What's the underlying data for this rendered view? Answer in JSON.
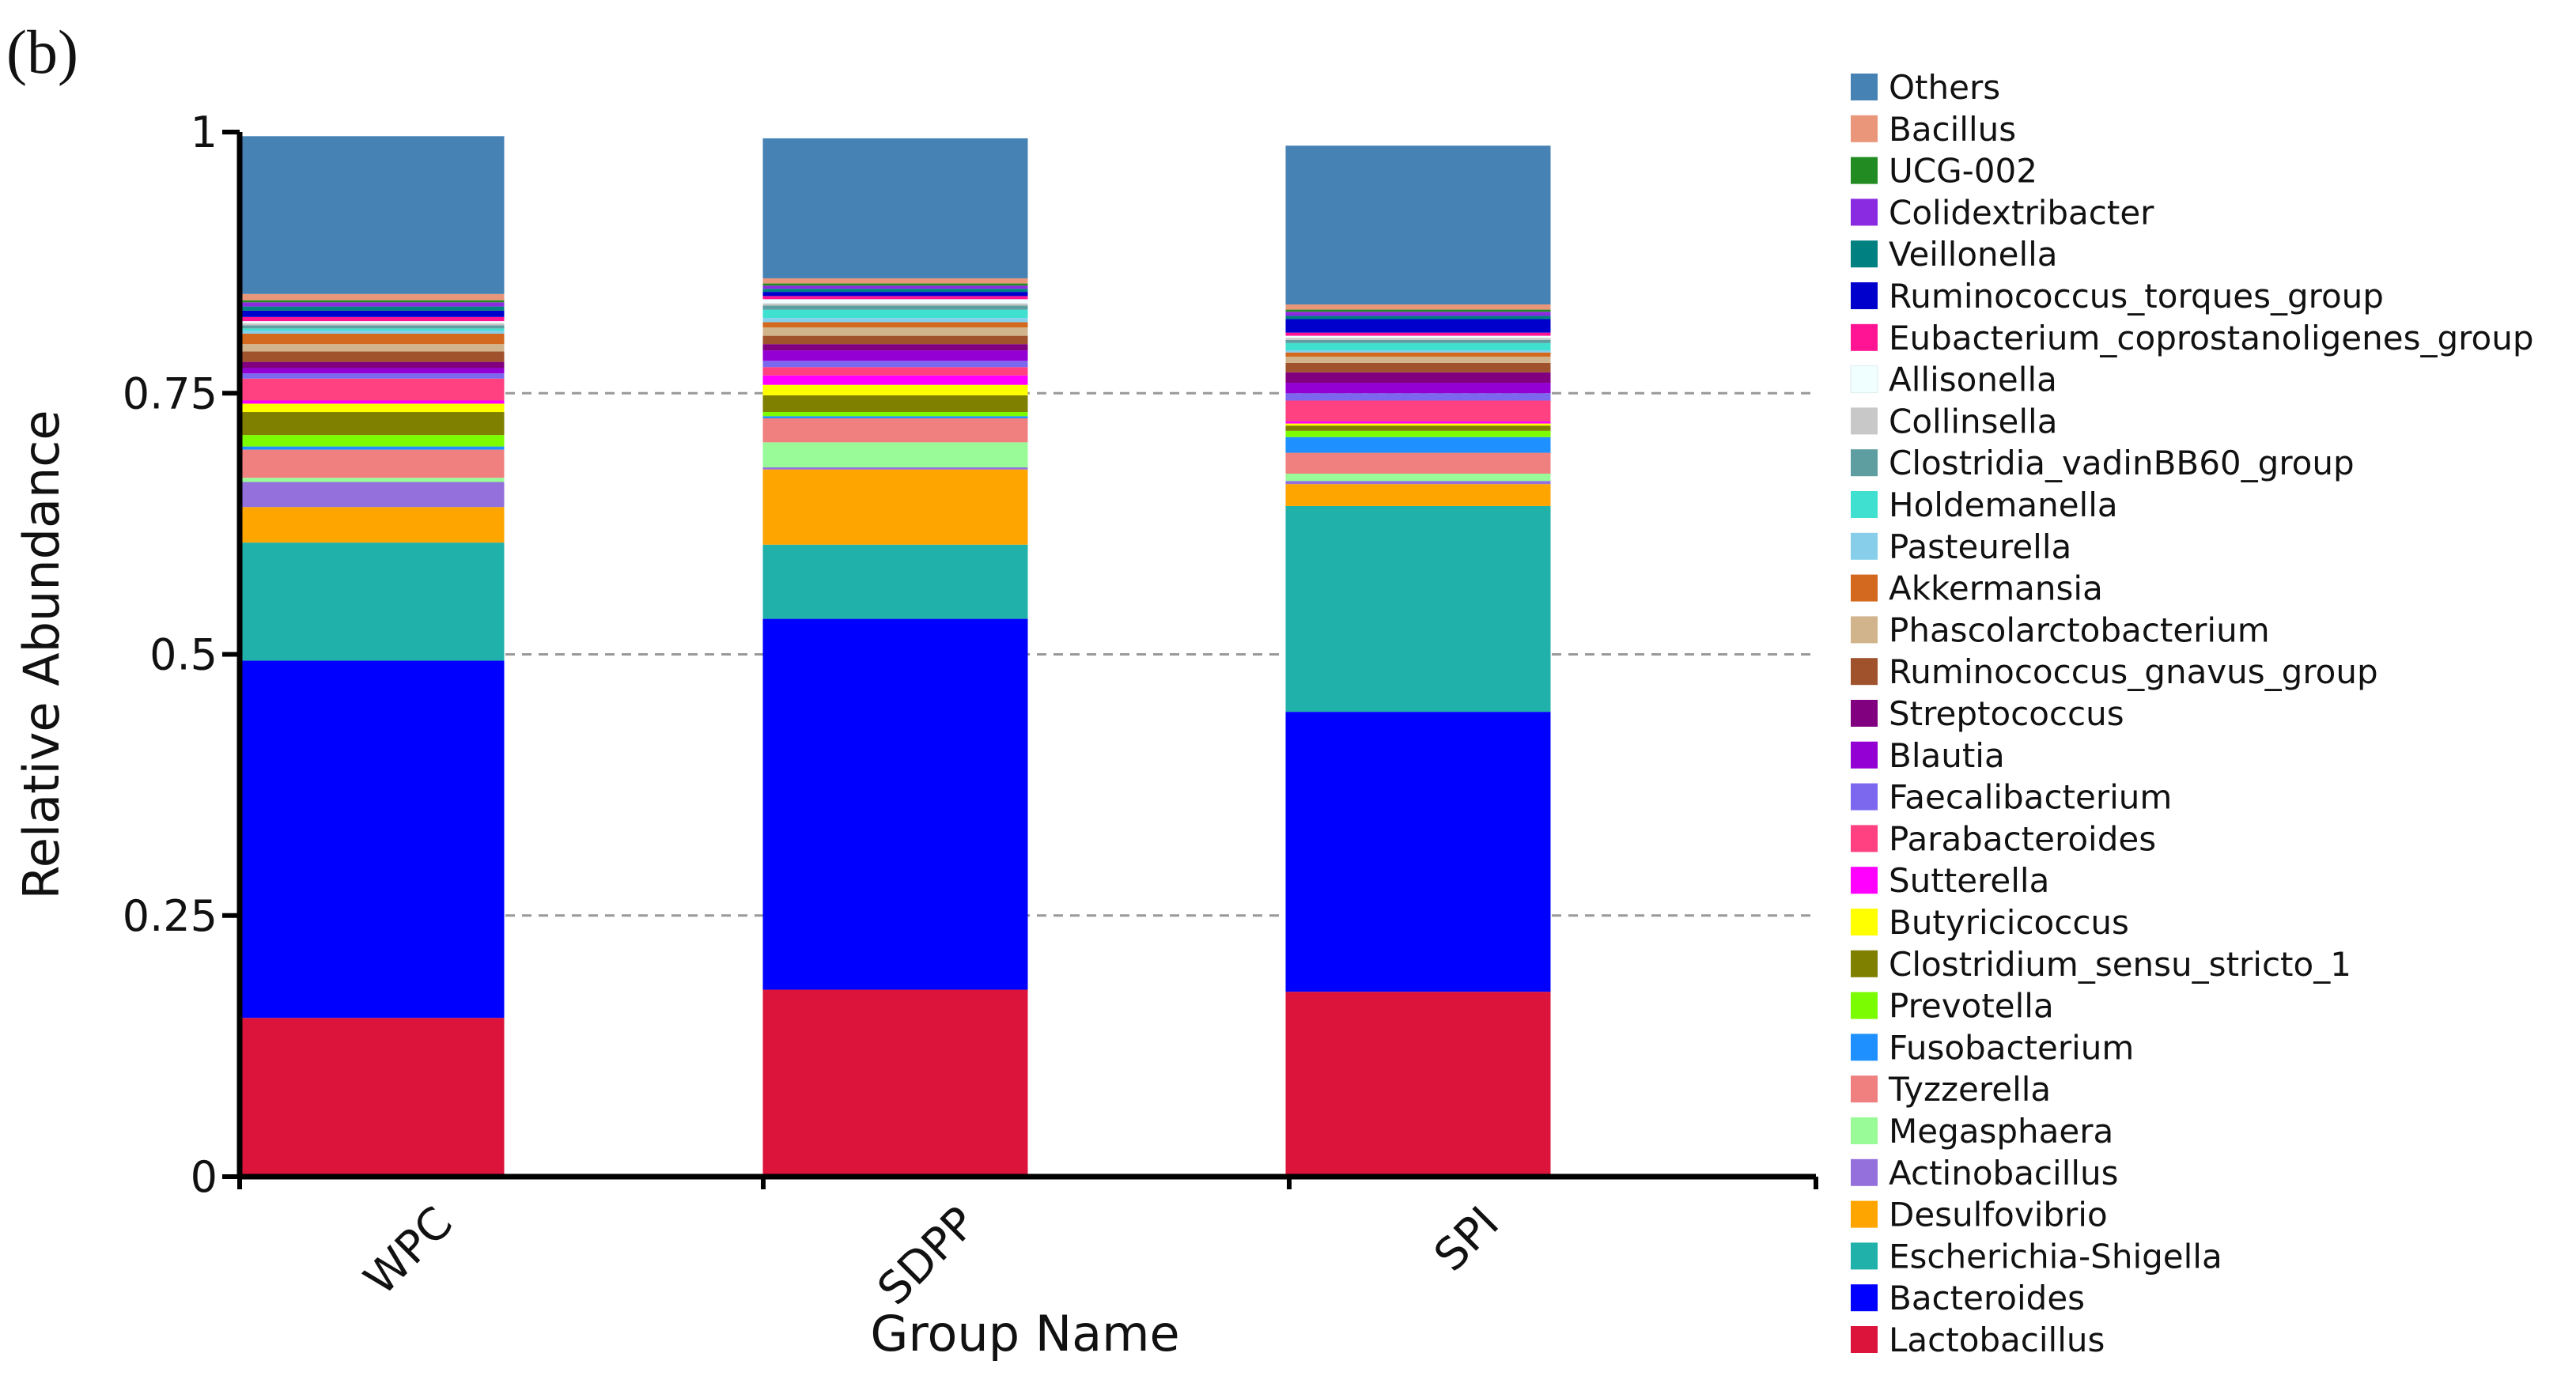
{
  "panel_label": "(b)",
  "chart_data": {
    "type": "bar",
    "stacked": true,
    "title": "",
    "xlabel": "Group Name",
    "ylabel": "Relative Abundance",
    "ylim": [
      0,
      1
    ],
    "yticks": [
      0,
      0.25,
      0.5,
      0.75,
      1
    ],
    "ytick_labels": [
      "0",
      "0.25",
      "0.5",
      "0.75",
      "1"
    ],
    "grid_y_dashed": [
      0.25,
      0.5,
      0.75
    ],
    "categories": [
      "WPC",
      "SDPP",
      "SPI"
    ],
    "legend_position": "right",
    "series": [
      {
        "name": "Lactobacillus",
        "color": "#DC143C",
        "values": [
          0.152,
          0.179,
          0.177
        ]
      },
      {
        "name": "Bacteroides",
        "color": "#0000FF",
        "values": [
          0.342,
          0.355,
          0.268
        ]
      },
      {
        "name": "Escherichia-Shigella",
        "color": "#20B2AA",
        "values": [
          0.113,
          0.071,
          0.197
        ]
      },
      {
        "name": "Desulfovibrio",
        "color": "#FFA500",
        "values": [
          0.034,
          0.072,
          0.021
        ]
      },
      {
        "name": "Actinobacillus",
        "color": "#9370DB",
        "values": [
          0.024,
          0.002,
          0.003
        ]
      },
      {
        "name": "Megasphaera",
        "color": "#98FB98",
        "values": [
          0.004,
          0.024,
          0.007
        ]
      },
      {
        "name": "Tyzzerella",
        "color": "#F08080",
        "values": [
          0.027,
          0.023,
          0.02
        ]
      },
      {
        "name": "Fusobacterium",
        "color": "#1E90FF",
        "values": [
          0.003,
          0.002,
          0.015
        ]
      },
      {
        "name": "Prevotella",
        "color": "#7CFC00",
        "values": [
          0.011,
          0.004,
          0.006
        ]
      },
      {
        "name": "Clostridium_sensu_stricto_1",
        "color": "#808000",
        "values": [
          0.022,
          0.016,
          0.005
        ]
      },
      {
        "name": "Butyricicoccus",
        "color": "#FFFF00",
        "values": [
          0.008,
          0.01,
          0.002
        ]
      },
      {
        "name": "Sutterella",
        "color": "#FF00FF",
        "values": [
          0.003,
          0.009,
          0.002
        ]
      },
      {
        "name": "Parabacteroides",
        "color": "#FF4081",
        "values": [
          0.021,
          0.008,
          0.02
        ]
      },
      {
        "name": "Faecalibacterium",
        "color": "#7B68EE",
        "values": [
          0.005,
          0.006,
          0.007
        ]
      },
      {
        "name": "Blautia",
        "color": "#9400D3",
        "values": [
          0.005,
          0.01,
          0.01
        ]
      },
      {
        "name": "Streptococcus",
        "color": "#800080",
        "values": [
          0.006,
          0.006,
          0.01
        ]
      },
      {
        "name": "Ruminococcus_gnavus_group",
        "color": "#A0522D",
        "values": [
          0.01,
          0.008,
          0.009
        ]
      },
      {
        "name": "Phascolarctobacterium",
        "color": "#D2B48C",
        "values": [
          0.007,
          0.008,
          0.006
        ]
      },
      {
        "name": "Akkermansia",
        "color": "#D2691E",
        "values": [
          0.01,
          0.005,
          0.004
        ]
      },
      {
        "name": "Pasteurella",
        "color": "#87CEEB",
        "values": [
          0.003,
          0.004,
          0.002
        ]
      },
      {
        "name": "Holdemanella",
        "color": "#40E0D0",
        "values": [
          0.002,
          0.008,
          0.007
        ]
      },
      {
        "name": "Clostridia_vadinBB60_group",
        "color": "#5F9EA0",
        "values": [
          0.003,
          0.004,
          0.003
        ]
      },
      {
        "name": "Collinsella",
        "color": "#C8C8C8",
        "values": [
          0.002,
          0.002,
          0.002
        ]
      },
      {
        "name": "Allisonella",
        "color": "#F0FFFF",
        "values": [
          0.002,
          0.004,
          0.002
        ]
      },
      {
        "name": "Eubacterium_coprostanoligenes_group",
        "color": "#FF1493",
        "values": [
          0.004,
          0.003,
          0.003
        ]
      },
      {
        "name": "Ruminococcus_torques_group",
        "color": "#0000CD",
        "values": [
          0.006,
          0.004,
          0.013
        ]
      },
      {
        "name": "Veillonella",
        "color": "#008080",
        "values": [
          0.004,
          0.003,
          0.003
        ]
      },
      {
        "name": "Colidextribacter",
        "color": "#8A2BE2",
        "values": [
          0.004,
          0.003,
          0.004
        ]
      },
      {
        "name": "UCG-002",
        "color": "#228B22",
        "values": [
          0.002,
          0.002,
          0.002
        ]
      },
      {
        "name": "Bacillus",
        "color": "#E9967A",
        "values": [
          0.006,
          0.005,
          0.005
        ]
      },
      {
        "name": "Others",
        "color": "#4682B4",
        "values": [
          0.151,
          0.134,
          0.152
        ]
      }
    ]
  }
}
